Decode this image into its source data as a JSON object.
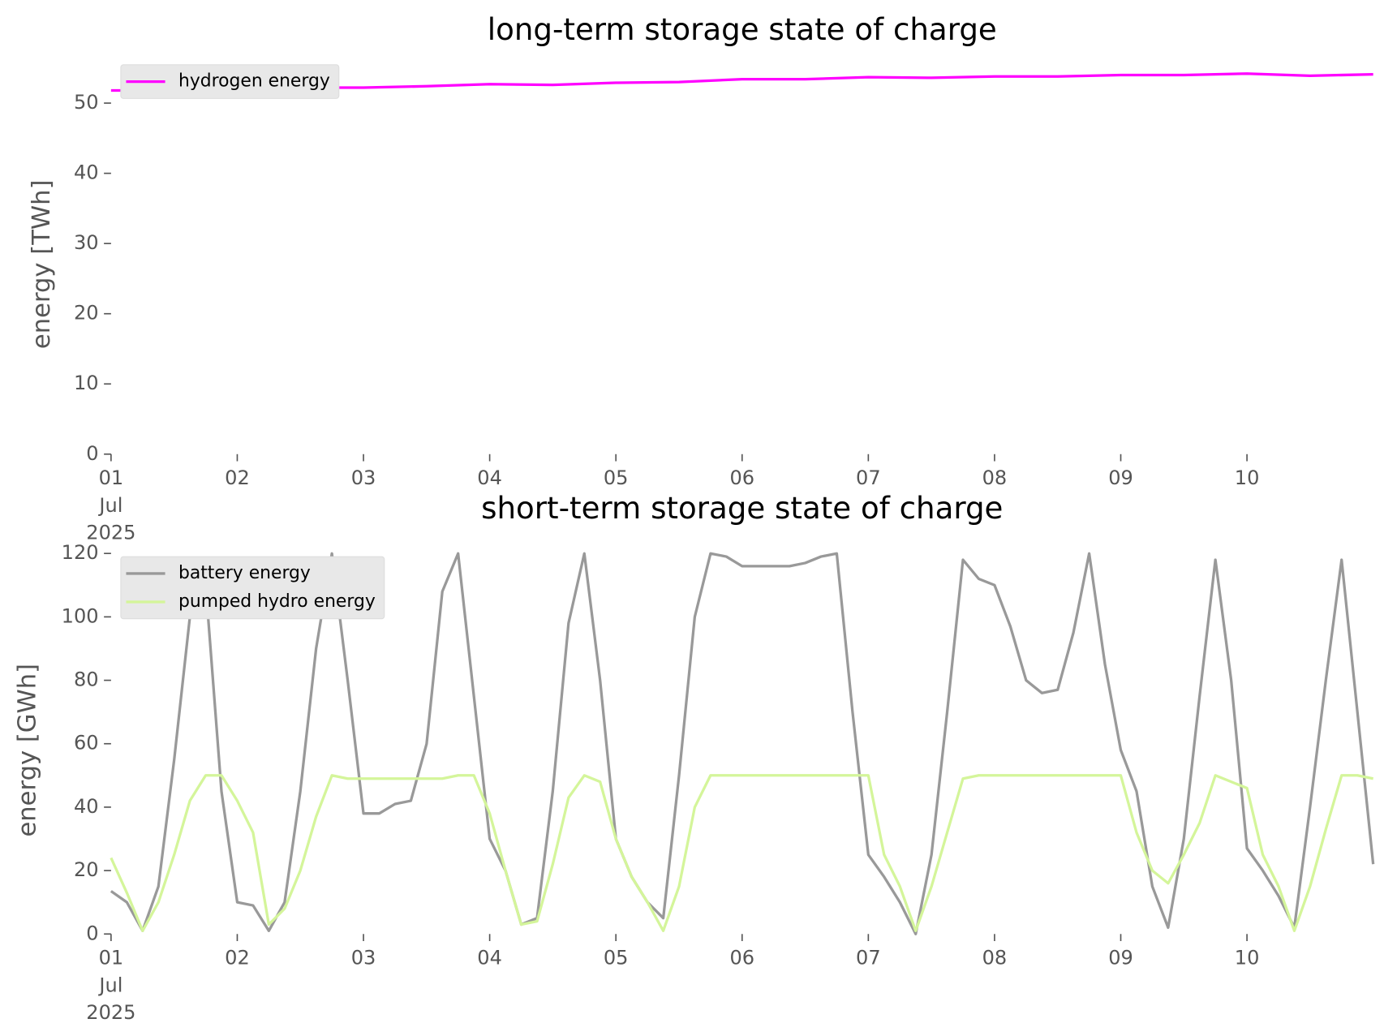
{
  "chart_data": [
    {
      "type": "line",
      "title": "long-term storage state of charge",
      "ylabel": "energy [TWh]",
      "x": [
        1,
        1.5,
        2,
        2.5,
        3,
        3.5,
        4,
        4.5,
        5,
        5.5,
        6,
        6.5,
        7,
        7.5,
        8,
        8.5,
        9,
        9.5,
        10,
        10.5,
        11
      ],
      "series": [
        {
          "name": "hydrogen energy",
          "color": "#ff00ff",
          "values": [
            51.8,
            51.8,
            52.0,
            52.2,
            52.2,
            52.4,
            52.7,
            52.6,
            52.9,
            53.0,
            53.4,
            53.4,
            53.7,
            53.6,
            53.8,
            53.8,
            54.0,
            54.0,
            54.2,
            53.9,
            54.1
          ]
        }
      ],
      "xlim": [
        1,
        11
      ],
      "xticks": [
        {
          "value": 1,
          "label": "01\nJul\n2025"
        },
        {
          "value": 2,
          "label": "02"
        },
        {
          "value": 3,
          "label": "03"
        },
        {
          "value": 4,
          "label": "04"
        },
        {
          "value": 5,
          "label": "05"
        },
        {
          "value": 6,
          "label": "06"
        },
        {
          "value": 7,
          "label": "07"
        },
        {
          "value": 8,
          "label": "08"
        },
        {
          "value": 9,
          "label": "09"
        },
        {
          "value": 10,
          "label": "10"
        }
      ],
      "ylim": [
        0,
        56.6
      ],
      "yticks": [
        0,
        10,
        20,
        30,
        40,
        50
      ],
      "legend": "upper left"
    },
    {
      "type": "line",
      "title": "short-term storage state of charge",
      "ylabel": "energy [GWh]",
      "x": [
        1,
        1.125,
        1.25,
        1.375,
        1.5,
        1.625,
        1.75,
        1.875,
        2,
        2.125,
        2.25,
        2.375,
        2.5,
        2.625,
        2.75,
        2.875,
        3,
        3.125,
        3.25,
        3.375,
        3.5,
        3.625,
        3.75,
        3.875,
        4,
        4.125,
        4.25,
        4.375,
        4.5,
        4.625,
        4.75,
        4.875,
        5,
        5.125,
        5.25,
        5.375,
        5.5,
        5.625,
        5.75,
        5.875,
        6,
        6.125,
        6.25,
        6.375,
        6.5,
        6.625,
        6.75,
        6.875,
        7,
        7.125,
        7.25,
        7.375,
        7.5,
        7.625,
        7.75,
        7.875,
        8,
        8.125,
        8.25,
        8.375,
        8.5,
        8.625,
        8.75,
        8.875,
        9,
        9.125,
        9.25,
        9.375,
        9.5,
        9.625,
        9.75,
        9.875,
        10,
        10.125,
        10.25,
        10.375,
        10.5,
        10.625,
        10.75,
        10.875,
        11
      ],
      "series": [
        {
          "name": "battery energy",
          "color": "#999999",
          "values": [
            13.5,
            10,
            1,
            15,
            55,
            100,
            110,
            45,
            10,
            9,
            1,
            10,
            45,
            90,
            120,
            80,
            38,
            38,
            41,
            42,
            60,
            108,
            120,
            75,
            30,
            20,
            3,
            5,
            45,
            98,
            120,
            80,
            30,
            18,
            10,
            5,
            50,
            100,
            120,
            119,
            116,
            116,
            116,
            116,
            117,
            119,
            120,
            70,
            25,
            18,
            10,
            0,
            25,
            70,
            118,
            112,
            110,
            97,
            80,
            76,
            77,
            95,
            120,
            85,
            58,
            45,
            15,
            2,
            30,
            75,
            118,
            80,
            27,
            20,
            12,
            2,
            40,
            80,
            118,
            70,
            22
          ]
        },
        {
          "name": "pumped hydro energy",
          "color": "#d4f59a",
          "values": [
            24,
            13,
            1,
            10,
            25,
            42,
            50,
            50,
            42,
            32,
            3,
            8,
            20,
            37,
            50,
            49,
            49,
            49,
            49,
            49,
            49,
            49,
            50,
            50,
            38,
            20,
            3,
            4,
            22,
            43,
            50,
            48,
            30,
            18,
            10,
            1,
            15,
            40,
            50,
            50,
            50,
            50,
            50,
            50,
            50,
            50,
            50,
            50,
            50,
            25,
            15,
            1,
            15,
            32,
            49,
            50,
            50,
            50,
            50,
            50,
            50,
            50,
            50,
            50,
            50,
            32,
            20,
            16,
            25,
            35,
            50,
            48,
            46,
            25,
            15,
            1,
            15,
            33,
            50,
            50,
            49
          ]
        }
      ],
      "xlim": [
        1,
        11
      ],
      "xticks": [
        {
          "value": 1,
          "label": "01\nJul\n2025"
        },
        {
          "value": 2,
          "label": "02"
        },
        {
          "value": 3,
          "label": "03"
        },
        {
          "value": 4,
          "label": "04"
        },
        {
          "value": 5,
          "label": "05"
        },
        {
          "value": 6,
          "label": "06"
        },
        {
          "value": 7,
          "label": "07"
        },
        {
          "value": 8,
          "label": "08"
        },
        {
          "value": 9,
          "label": "09"
        },
        {
          "value": 10,
          "label": "10"
        }
      ],
      "ylim": [
        0,
        121.5
      ],
      "yticks": [
        0,
        20,
        40,
        60,
        80,
        100,
        120
      ],
      "legend": "upper left"
    }
  ]
}
